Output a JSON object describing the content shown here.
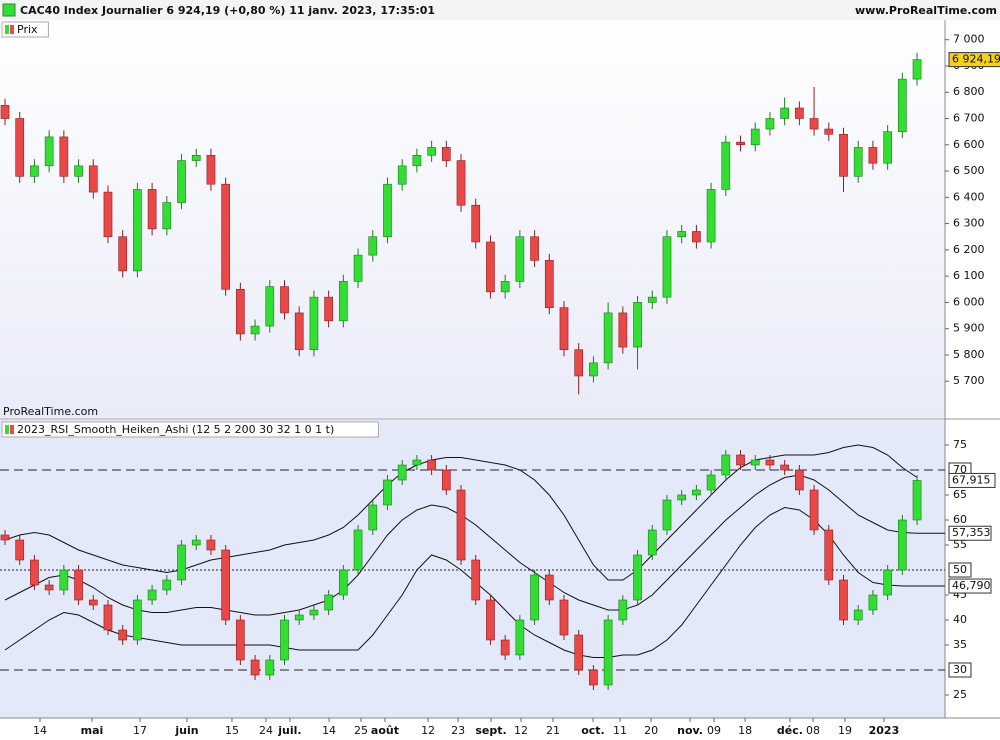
{
  "header": {
    "title": "CAC40 Index Journalier 6 924,19 (+0,80 %) 11 janv. 2023, 17:35:01",
    "site": "www.ProRealTime.com"
  },
  "chart_data": [
    {
      "type": "candlestick",
      "legend": "Prix",
      "watermark": "ProRealTime.com",
      "up_color": "#33dd33",
      "down_color": "#e84848",
      "xlim": [
        -0.34,
        63.9
      ],
      "ylim": [
        5560,
        7075
      ],
      "yticks": [
        {
          "value": 5700,
          "label": "5 700"
        },
        {
          "value": 5800,
          "label": "5 800"
        },
        {
          "value": 5900,
          "label": "5 900"
        },
        {
          "value": 6000,
          "label": "6 000"
        },
        {
          "value": 6100,
          "label": "6 100"
        },
        {
          "value": 6200,
          "label": "6 200"
        },
        {
          "value": 6300,
          "label": "6 300"
        },
        {
          "value": 6400,
          "label": "6 400"
        },
        {
          "value": 6500,
          "label": "6 500"
        },
        {
          "value": 6600,
          "label": "6 600"
        },
        {
          "value": 6700,
          "label": "6 700"
        },
        {
          "value": 6800,
          "label": "6 800"
        },
        {
          "value": 6900,
          "label": "6 900"
        },
        {
          "value": 7000,
          "label": "7 000"
        }
      ],
      "close_label": "6 924,19",
      "close_label_color": "#f5d020",
      "open": [
        6750,
        6700,
        6480,
        6520,
        6630,
        6480,
        6520,
        6420,
        6250,
        6120,
        6430,
        6280,
        6380,
        6540,
        6560,
        6450,
        6050,
        5880,
        5910,
        6060,
        5960,
        5820,
        6020,
        5930,
        6080,
        6180,
        6250,
        6450,
        6520,
        6560,
        6590,
        6540,
        6370,
        6230,
        6040,
        6080,
        6250,
        6160,
        5980,
        5820,
        5720,
        5770,
        5960,
        5830,
        6000,
        6020,
        6250,
        6270,
        6230,
        6430,
        6610,
        6600,
        6660,
        6700,
        6740,
        6700,
        6660,
        6640,
        6480,
        6590,
        6530,
        6650,
        6850
      ],
      "high": [
        6775,
        6725,
        6545,
        6655,
        6655,
        6545,
        6545,
        6445,
        6275,
        6455,
        6455,
        6405,
        6565,
        6585,
        6585,
        6475,
        6075,
        5935,
        6085,
        6085,
        5985,
        6045,
        6045,
        6105,
        6205,
        6275,
        6475,
        6545,
        6585,
        6615,
        6615,
        6565,
        6395,
        6255,
        6105,
        6275,
        6275,
        6185,
        6005,
        5845,
        5795,
        6000,
        5985,
        6025,
        6045,
        6275,
        6295,
        6295,
        6455,
        6635,
        6635,
        6685,
        6725,
        6780,
        6765,
        6820,
        6685,
        6665,
        6615,
        6615,
        6675,
        6875,
        6950
      ],
      "low": [
        6675,
        6455,
        6455,
        6495,
        6455,
        6455,
        6395,
        6225,
        6095,
        6095,
        6255,
        6255,
        6355,
        6515,
        6425,
        6025,
        5855,
        5855,
        5885,
        5935,
        5795,
        5795,
        5905,
        5905,
        6055,
        6155,
        6225,
        6425,
        6495,
        6535,
        6515,
        6345,
        6205,
        6015,
        6015,
        6055,
        6135,
        5955,
        5795,
        5650,
        5695,
        5745,
        5805,
        5745,
        5975,
        5995,
        6225,
        6205,
        6205,
        6405,
        6575,
        6575,
        6635,
        6675,
        6675,
        6635,
        6615,
        6420,
        6455,
        6505,
        6505,
        6625,
        6825
      ],
      "close": [
        6700,
        6480,
        6520,
        6630,
        6480,
        6520,
        6420,
        6250,
        6120,
        6430,
        6280,
        6380,
        6540,
        6560,
        6450,
        6050,
        5880,
        5910,
        6060,
        5960,
        5820,
        6020,
        5930,
        6080,
        6180,
        6250,
        6450,
        6520,
        6560,
        6590,
        6540,
        6370,
        6230,
        6040,
        6080,
        6250,
        6160,
        5980,
        5820,
        5720,
        5770,
        5960,
        5830,
        6000,
        6020,
        6250,
        6270,
        6230,
        6430,
        6610,
        6600,
        6660,
        6700,
        6740,
        6700,
        6660,
        6640,
        6480,
        6590,
        6530,
        6650,
        6850,
        6924.19
      ]
    },
    {
      "type": "candlestick",
      "legend": "2023_RSI_Smooth_Heiken_Ashi (12 5 2 200 30 32 1 0 1 t)",
      "up_color": "#33dd33",
      "down_color": "#e84848",
      "xlim": [
        -0.34,
        63.9
      ],
      "ylim": [
        20.4,
        80
      ],
      "yticks": [
        25,
        35,
        40,
        45,
        55,
        60,
        65,
        75
      ],
      "levels": [
        {
          "value": 70,
          "style": "dashed"
        },
        {
          "value": 50,
          "style": "dotted"
        },
        {
          "value": 30,
          "style": "dashed"
        }
      ],
      "close_label": "67,915",
      "xticks": [
        {
          "value": 2.38,
          "label": "14"
        },
        {
          "value": 5.91,
          "label": "mai",
          "major": true
        },
        {
          "value": 9.18,
          "label": "17"
        },
        {
          "value": 12.37,
          "label": "juin",
          "major": true
        },
        {
          "value": 15.43,
          "label": "15"
        },
        {
          "value": 17.74,
          "label": "24"
        },
        {
          "value": 19.37,
          "label": "juil.",
          "major": true
        },
        {
          "value": 22.03,
          "label": "14"
        },
        {
          "value": 24.2,
          "label": "25"
        },
        {
          "value": 25.83,
          "label": "août",
          "major": true
        },
        {
          "value": 28.76,
          "label": "12"
        },
        {
          "value": 30.8,
          "label": "23"
        },
        {
          "value": 33.04,
          "label": "sept.",
          "major": true
        },
        {
          "value": 35.08,
          "label": "12"
        },
        {
          "value": 37.25,
          "label": "21"
        },
        {
          "value": 39.97,
          "label": "oct.",
          "major": true
        },
        {
          "value": 41.81,
          "label": "11"
        },
        {
          "value": 43.92,
          "label": "20"
        },
        {
          "value": 46.57,
          "label": "nov.",
          "major": true
        },
        {
          "value": 48.2,
          "label": "09"
        },
        {
          "value": 50.31,
          "label": "18"
        },
        {
          "value": 53.36,
          "label": "déc.",
          "major": true
        },
        {
          "value": 54.93,
          "label": "08"
        },
        {
          "value": 57.1,
          "label": "19"
        },
        {
          "value": 59.75,
          "label": "2023",
          "major": true
        }
      ],
      "open": [
        57,
        56,
        52,
        47,
        46,
        50,
        44,
        43,
        38,
        36,
        44,
        46,
        48,
        55,
        56,
        54,
        40,
        32,
        29,
        32,
        40,
        41,
        42,
        45,
        50,
        58,
        63,
        68,
        71,
        72,
        70,
        66,
        52,
        44,
        36,
        33,
        40,
        49,
        44,
        37,
        30,
        27,
        40,
        44,
        53,
        58,
        64,
        65,
        66,
        69,
        73,
        71,
        72,
        71,
        70,
        66,
        58,
        48,
        40,
        42,
        45,
        50,
        60
      ],
      "high": [
        58,
        57,
        53,
        48,
        51,
        51,
        45,
        44,
        39,
        45,
        47,
        49,
        56,
        57,
        57,
        55,
        41,
        33,
        33,
        41,
        42,
        43,
        46,
        51,
        59,
        64,
        69,
        72,
        73,
        73,
        71,
        67,
        53,
        45,
        37,
        41,
        50,
        50,
        45,
        38,
        31,
        41,
        45,
        54,
        59,
        65,
        66,
        67,
        70,
        74,
        74,
        73,
        73,
        72,
        71,
        67,
        59,
        49,
        43,
        46,
        51,
        61,
        69
      ],
      "low": [
        55,
        51,
        46,
        45,
        45,
        43,
        42,
        37,
        35,
        35,
        43,
        45,
        47,
        54,
        53,
        39,
        31,
        28,
        28,
        31,
        39,
        40,
        41,
        44,
        49,
        57,
        62,
        67,
        70,
        69,
        65,
        51,
        43,
        35,
        32,
        32,
        39,
        43,
        36,
        29,
        26,
        26,
        39,
        43,
        52,
        57,
        63,
        64,
        65,
        68,
        70,
        70,
        70,
        69,
        65,
        57,
        47,
        39,
        39,
        41,
        44,
        49,
        59
      ],
      "close": [
        56,
        52,
        47,
        46,
        50,
        44,
        43,
        38,
        36,
        44,
        46,
        48,
        55,
        56,
        54,
        40,
        32,
        29,
        32,
        40,
        41,
        42,
        45,
        50,
        58,
        63,
        68,
        71,
        72,
        70,
        66,
        52,
        44,
        36,
        33,
        40,
        49,
        44,
        37,
        30,
        27,
        40,
        44,
        53,
        58,
        64,
        65,
        66,
        69,
        73,
        71,
        72,
        71,
        70,
        66,
        58,
        48,
        40,
        42,
        45,
        50,
        60,
        67.915
      ],
      "bands": [
        {
          "values": [
            56,
            57,
            57.5,
            57,
            55.5,
            54,
            53,
            52,
            51,
            50.5,
            50,
            49.5,
            50,
            51,
            52,
            52.5,
            53,
            53.5,
            54,
            55,
            55.5,
            56,
            57,
            58.5,
            61,
            64,
            67,
            69.5,
            71,
            72,
            72.5,
            72.5,
            72,
            71.5,
            71,
            70,
            68,
            65,
            61,
            56,
            51,
            48,
            48,
            50,
            53,
            56,
            59,
            62,
            65,
            68,
            70.5,
            72,
            72.5,
            73,
            73,
            73,
            73.5,
            74.5,
            75,
            74.5,
            73,
            70.5,
            68.5
          ]
        },
        {
          "values": [
            44,
            45.5,
            47,
            48.5,
            49,
            48,
            46.5,
            44.5,
            43,
            42,
            41.5,
            41.5,
            42,
            42.5,
            42.5,
            42,
            41.5,
            41,
            41,
            41.5,
            42,
            43,
            44,
            46,
            49,
            53,
            57,
            60,
            62,
            63,
            62.5,
            61,
            59,
            56.5,
            54,
            51.5,
            49.5,
            47.5,
            45.5,
            44,
            43,
            42,
            42,
            43,
            45,
            48,
            51,
            54,
            57,
            60,
            62.5,
            65,
            67,
            68.5,
            69,
            68,
            66,
            63.5,
            61,
            59.5,
            58,
            57.5,
            57.353
          ],
          "value_label": "57,353"
        },
        {
          "values": [
            34,
            36,
            38,
            40,
            41.5,
            41,
            39.5,
            38,
            37,
            36.5,
            36,
            35.5,
            35,
            35,
            35,
            35,
            35,
            35,
            35,
            34.5,
            34,
            34,
            34,
            34,
            34,
            37,
            41,
            45,
            50,
            53,
            52,
            50,
            47.5,
            45,
            42,
            39,
            37,
            35.5,
            34,
            33,
            32.5,
            32.5,
            33,
            33,
            34,
            36,
            39,
            43,
            47,
            51,
            55,
            58.5,
            61,
            62.5,
            62,
            60,
            57,
            53,
            49.5,
            47.5,
            47,
            46.8,
            46.79
          ],
          "value_label": "46,790"
        }
      ]
    }
  ]
}
